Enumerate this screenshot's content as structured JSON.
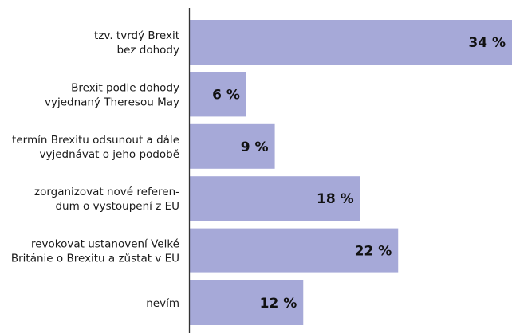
{
  "chart_data": {
    "type": "bar",
    "orientation": "horizontal",
    "categories": [
      [
        "tzv. tvrdý Brexit",
        "bez dohody"
      ],
      [
        "Brexit podle dohody",
        "vyjednaný Theresou May"
      ],
      [
        "termín Brexitu odsunout a dále",
        "vyjednávat o jeho podobě"
      ],
      [
        "zorganizovat nové referen-",
        "dum o vystoupení z EU"
      ],
      [
        "revokovat ustanovení Velké",
        "Británie o Brexitu a zůstat v EU"
      ],
      [
        "nevím"
      ]
    ],
    "values": [
      34,
      6,
      9,
      18,
      22,
      12
    ],
    "value_labels": [
      "34 %",
      "6 %",
      "9 %",
      "18 %",
      "22 %",
      "12 %"
    ],
    "unit": "%",
    "xlim": [
      0,
      34
    ],
    "grid": false,
    "colors": {
      "bar": "#a6a9d8",
      "axis": "#333333",
      "text": "#1a1a1a"
    }
  }
}
